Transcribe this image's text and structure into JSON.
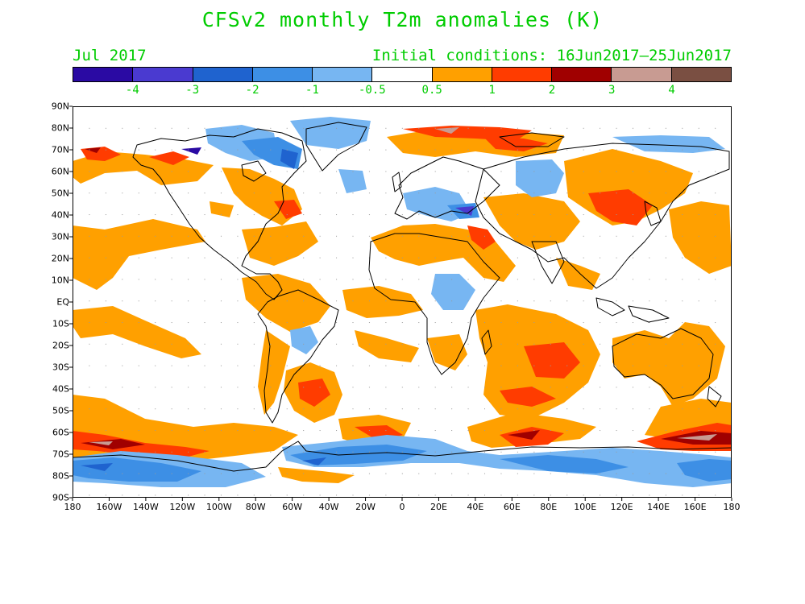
{
  "title": "CFSv2 monthly T2m anomalies (K)",
  "subtitle_left": "Jul 2017",
  "subtitle_right": "Initial conditions: 16Jun2017–25Jun2017",
  "colorbar": {
    "colors": [
      "#2a0aa3",
      "#4a3ad0",
      "#1f63cf",
      "#3d8fe5",
      "#77b6f2",
      "#ffffff",
      "#ffa000",
      "#ff3c00",
      "#a00000",
      "#c89b92",
      "#7a4f42"
    ],
    "labels": [
      "-4",
      "-3",
      "-2",
      "-1",
      "-0.5",
      "0.5",
      "1",
      "2",
      "3",
      "4"
    ]
  },
  "axes": {
    "lat_labels": [
      "90N",
      "80N",
      "70N",
      "60N",
      "50N",
      "40N",
      "30N",
      "20N",
      "10N",
      "EQ",
      "10S",
      "20S",
      "30S",
      "40S",
      "50S",
      "60S",
      "70S",
      "80S",
      "90S"
    ],
    "lon_labels": [
      "180",
      "160W",
      "140W",
      "120W",
      "100W",
      "80W",
      "60W",
      "40W",
      "20W",
      "0",
      "20E",
      "40E",
      "60E",
      "80E",
      "100E",
      "120E",
      "140E",
      "160E",
      "180"
    ]
  }
}
